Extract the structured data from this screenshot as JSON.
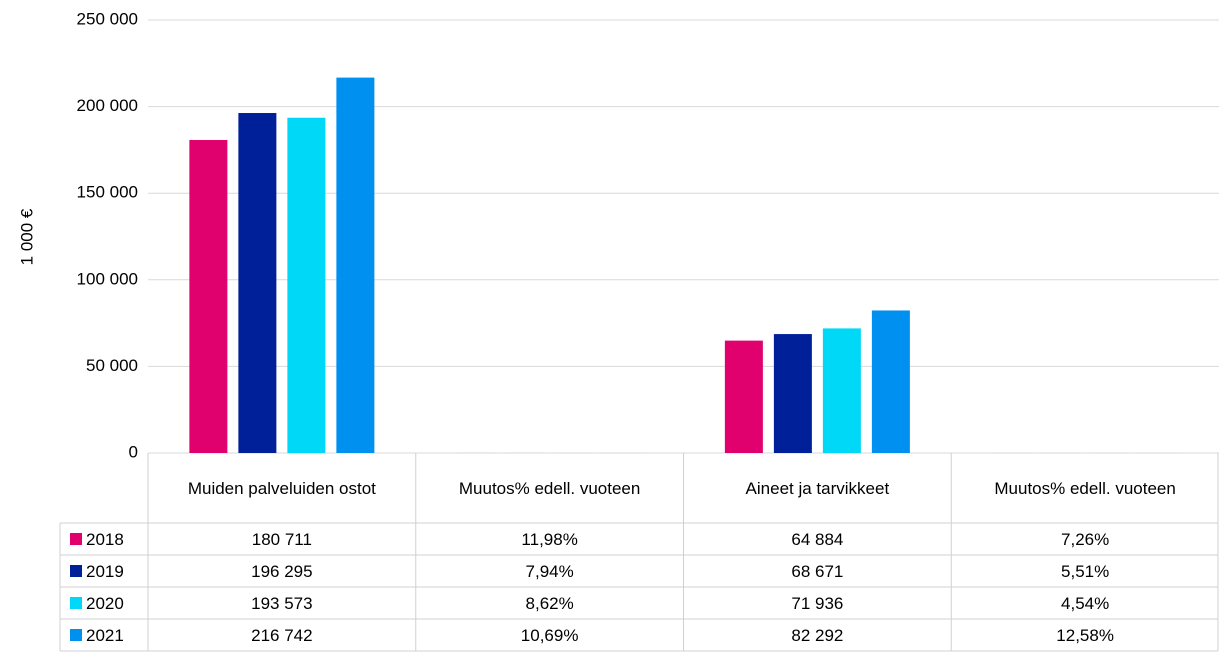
{
  "chart_data": {
    "type": "bar",
    "ylabel": "1 000 €",
    "categories": [
      "Muiden palveluiden ostot",
      "Muutos% edell. vuoteen",
      "Aineet ja tarvikkeet",
      "Muutos% edell. vuoteen"
    ],
    "series": [
      {
        "name": "2018",
        "color": "#e0006e",
        "values": [
          180711,
          11.98,
          64884,
          7.26
        ],
        "value_labels": [
          "180 711",
          "11,98%",
          "64 884",
          "7,26%"
        ]
      },
      {
        "name": "2019",
        "color": "#00209a",
        "values": [
          196295,
          7.94,
          68671,
          5.51
        ],
        "value_labels": [
          "196 295",
          "7,94%",
          "68 671",
          "5,51%"
        ]
      },
      {
        "name": "2020",
        "color": "#00d8f8",
        "values": [
          193573,
          8.62,
          71936,
          4.54
        ],
        "value_labels": [
          "193 573",
          "8,62%",
          "71 936",
          "4,54%"
        ]
      },
      {
        "name": "2021",
        "color": "#0090f0",
        "values": [
          216742,
          10.69,
          82292,
          12.58
        ],
        "value_labels": [
          "216 742",
          "10,69%",
          "82 292",
          "12,58%"
        ]
      }
    ],
    "ylim": [
      0,
      250000
    ],
    "yticks": [
      0,
      {
        "value": 50000,
        "label": "50 000"
      },
      {
        "value": 100000,
        "label": "100 000"
      },
      {
        "value": 150000,
        "label": "150 000"
      },
      {
        "value": 200000,
        "label": "200 000"
      },
      {
        "value": 250000,
        "label": "250 000"
      }
    ],
    "grid": true,
    "data_table": true
  }
}
